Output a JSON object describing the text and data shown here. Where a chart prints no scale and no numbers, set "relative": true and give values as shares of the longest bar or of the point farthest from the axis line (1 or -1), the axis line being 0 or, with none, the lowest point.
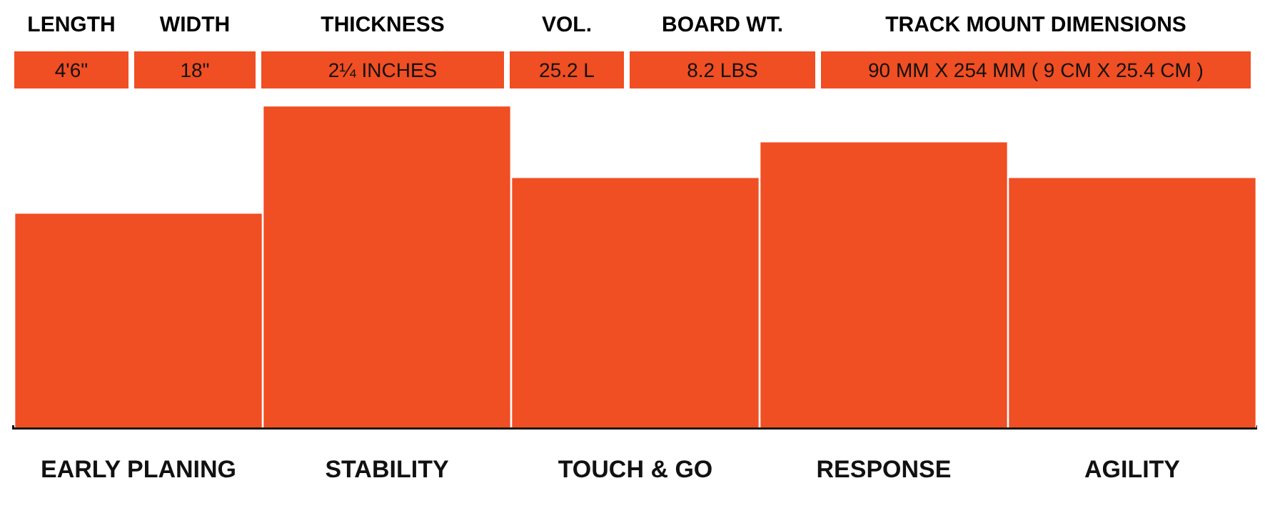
{
  "chart_data": [
    {
      "type": "other",
      "categories": [
        "LENGTH",
        "WIDTH",
        "THICKNESS",
        "VOL.",
        "BOARD WT.",
        "TRACK MOUNT DIMENSIONS"
      ],
      "annotations": [
        "4'6\"",
        "18\"",
        "2¼ INCHES",
        "25.2 L",
        "8.2 LBS",
        "90 MM X 254 MM ( 9 CM X 25.4 CM )"
      ],
      "color": "#f04e23"
    },
    {
      "type": "bar",
      "relative": true,
      "categories": [
        "EARLY PLANING",
        "STABILITY",
        "TOUCH & GO",
        "RESPONSE",
        "AGILITY"
      ],
      "values": [
        0.667,
        1,
        0.778,
        0.889,
        0.778
      ],
      "color": "#f04e23"
    }
  ]
}
